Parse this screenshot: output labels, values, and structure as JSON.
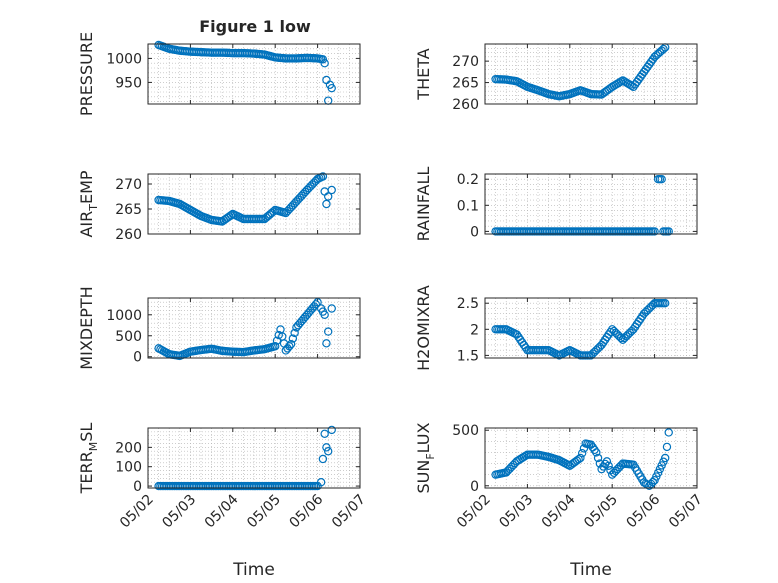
{
  "figure": {
    "title": "Figure 1 low",
    "background": "#ffffff"
  },
  "colors": {
    "marker": "#0072BD",
    "axis": "#262626",
    "grid": "#b0b0b0"
  },
  "chart_data": [
    {
      "type": "scatter",
      "title": "Figure 1 low",
      "ylabel": "PRESSURE",
      "ylim": [
        905,
        1030
      ],
      "yticks": [
        950,
        1000
      ],
      "xlim": [
        "05/02",
        "05/07"
      ],
      "xticks": [
        "05/02",
        "05/03",
        "05/04",
        "05/05",
        "05/06",
        "05/07"
      ],
      "xlabel": "",
      "grid": true,
      "x": [
        "05/02 06:00",
        "05/02 09:00",
        "05/02 12:00",
        "05/02 15:00",
        "05/02 18:00",
        "05/02 21:00",
        "05/03 00:00",
        "05/03 06:00",
        "05/03 12:00",
        "05/03 18:00",
        "05/04 00:00",
        "05/04 06:00",
        "05/04 12:00",
        "05/04 18:00",
        "05/05 00:00",
        "05/05 06:00",
        "05/05 12:00",
        "05/05 18:00",
        "05/06 00:00",
        "05/06 03:00",
        "05/06 04:00",
        "05/06 05:00",
        "05/06 06:00",
        "05/06 07:00",
        "05/06 08:00"
      ],
      "y": [
        1028,
        1024,
        1020,
        1018,
        1016,
        1015,
        1014,
        1013,
        1012,
        1012,
        1011,
        1011,
        1010,
        1008,
        1002,
        1000,
        1000,
        1001,
        1000,
        998,
        990,
        955,
        912,
        945,
        938
      ]
    },
    {
      "type": "scatter",
      "ylabel": "THETA",
      "ylim": [
        260,
        274
      ],
      "yticks": [
        260,
        265,
        270
      ],
      "xlim": [
        "05/02",
        "05/07"
      ],
      "xticks": [
        "05/02",
        "05/03",
        "05/04",
        "05/05",
        "05/06",
        "05/07"
      ],
      "xlabel": "",
      "grid": true,
      "x": [
        "05/02 06:00",
        "05/02 12:00",
        "05/02 18:00",
        "05/03 00:00",
        "05/03 06:00",
        "05/03 12:00",
        "05/03 18:00",
        "05/04 00:00",
        "05/04 06:00",
        "05/04 12:00",
        "05/04 18:00",
        "05/05 00:00",
        "05/05 06:00",
        "05/05 12:00",
        "05/05 18:00",
        "05/06 00:00",
        "05/06 06:00"
      ],
      "y": [
        265.8,
        265.7,
        265.3,
        264.0,
        263.2,
        262.3,
        261.8,
        262.3,
        263.2,
        262.3,
        262.2,
        264.0,
        265.5,
        264.0,
        267.5,
        271.0,
        273.2
      ]
    },
    {
      "type": "scatter",
      "ylabel": "AIR_TEMP",
      "ylabel_parts": [
        "AIR",
        "T",
        "EMP"
      ],
      "ylim": [
        260,
        272
      ],
      "yticks": [
        260,
        265,
        270
      ],
      "xlim": [
        "05/02",
        "05/07"
      ],
      "xticks": [
        "05/02",
        "05/03",
        "05/04",
        "05/05",
        "05/06",
        "05/07"
      ],
      "xlabel": "",
      "grid": true,
      "x": [
        "05/02 06:00",
        "05/02 12:00",
        "05/02 18:00",
        "05/03 00:00",
        "05/03 06:00",
        "05/03 12:00",
        "05/03 18:00",
        "05/04 00:00",
        "05/04 06:00",
        "05/04 12:00",
        "05/04 18:00",
        "05/05 00:00",
        "05/05 06:00",
        "05/05 12:00",
        "05/05 18:00",
        "05/06 00:00",
        "05/06 03:00",
        "05/06 04:00",
        "05/06 05:00",
        "05/06 06:00",
        "05/06 08:00"
      ],
      "y": [
        266.8,
        266.6,
        266.0,
        264.8,
        263.6,
        262.8,
        262.5,
        264.0,
        263.0,
        263.0,
        263.0,
        264.8,
        264.2,
        266.5,
        268.8,
        271.0,
        271.5,
        268.5,
        266.0,
        267.5,
        268.8
      ]
    },
    {
      "type": "scatter",
      "ylabel": "RAINFALL",
      "ylim": [
        -0.01,
        0.22
      ],
      "yticks": [
        0,
        0.1,
        0.2
      ],
      "xlim": [
        "05/02",
        "05/07"
      ],
      "xticks": [
        "05/02",
        "05/03",
        "05/04",
        "05/05",
        "05/06",
        "05/07"
      ],
      "xlabel": "",
      "grid": true,
      "x": [
        "05/02 06:00",
        "05/03 00:00",
        "05/04 00:00",
        "05/05 00:00",
        "05/06 00:00",
        "05/06 02:00",
        "05/06 03:00",
        "05/06 04:00",
        "05/06 05:00",
        "05/06 08:00"
      ],
      "y": [
        0,
        0,
        0,
        0,
        0,
        0.2,
        0.2,
        0.2,
        0,
        0
      ]
    },
    {
      "type": "scatter",
      "ylabel": "MIXDEPTH",
      "ylim": [
        -30,
        1400
      ],
      "yticks": [
        0,
        500,
        1000
      ],
      "xlim": [
        "05/02",
        "05/07"
      ],
      "xticks": [
        "05/02",
        "05/03",
        "05/04",
        "05/05",
        "05/06",
        "05/07"
      ],
      "xlabel": "",
      "grid": true,
      "x": [
        "05/02 06:00",
        "05/02 12:00",
        "05/02 18:00",
        "05/03 00:00",
        "05/03 06:00",
        "05/03 12:00",
        "05/03 18:00",
        "05/04 00:00",
        "05/04 06:00",
        "05/04 12:00",
        "05/04 18:00",
        "05/05 00:00",
        "05/05 03:00",
        "05/05 06:00",
        "05/05 09:00",
        "05/05 12:00",
        "05/05 18:00",
        "05/06 00:00",
        "05/06 02:00",
        "05/06 04:00",
        "05/06 05:00",
        "05/06 06:00",
        "05/06 08:00"
      ],
      "y": [
        200,
        60,
        20,
        120,
        160,
        190,
        140,
        120,
        110,
        150,
        180,
        250,
        650,
        150,
        300,
        700,
        1000,
        1300,
        1150,
        1000,
        320,
        600,
        1150
      ]
    },
    {
      "type": "scatter",
      "ylabel": "H2OMIXRA",
      "ylim": [
        1.45,
        2.6
      ],
      "yticks": [
        1.5,
        2,
        2.5
      ],
      "xlim": [
        "05/02",
        "05/07"
      ],
      "xticks": [
        "05/02",
        "05/03",
        "05/04",
        "05/05",
        "05/06",
        "05/07"
      ],
      "xlabel": "",
      "grid": true,
      "x": [
        "05/02 06:00",
        "05/02 12:00",
        "05/02 18:00",
        "05/03 00:00",
        "05/03 06:00",
        "05/03 12:00",
        "05/03 18:00",
        "05/04 00:00",
        "05/04 06:00",
        "05/04 12:00",
        "05/04 18:00",
        "05/05 00:00",
        "05/05 06:00",
        "05/05 12:00",
        "05/05 18:00",
        "05/06 00:00",
        "05/06 06:00"
      ],
      "y": [
        2.0,
        2.0,
        1.9,
        1.6,
        1.6,
        1.6,
        1.5,
        1.6,
        1.5,
        1.5,
        1.7,
        2.0,
        1.8,
        2.0,
        2.3,
        2.5,
        2.5
      ]
    },
    {
      "type": "scatter",
      "ylabel": "TERR_MSL",
      "ylabel_parts": [
        "TERR",
        "M",
        "SL"
      ],
      "ylim": [
        -10,
        300
      ],
      "yticks": [
        0,
        100,
        200
      ],
      "xlim": [
        "05/02",
        "05/07"
      ],
      "xticks": [
        "05/02",
        "05/03",
        "05/04",
        "05/05",
        "05/06",
        "05/07"
      ],
      "xlabel": "Time",
      "grid": true,
      "x": [
        "05/02 06:00",
        "05/03 00:00",
        "05/04 00:00",
        "05/05 00:00",
        "05/05 12:00",
        "05/06 00:00",
        "05/06 02:00",
        "05/06 03:00",
        "05/06 04:00",
        "05/06 05:00",
        "05/06 06:00",
        "05/06 08:00"
      ],
      "y": [
        0,
        0,
        0,
        0,
        0,
        0,
        20,
        140,
        270,
        200,
        180,
        290
      ]
    },
    {
      "type": "scatter",
      "ylabel": "SUN_FLUX",
      "ylabel_parts": [
        "SUN",
        "F",
        "LUX"
      ],
      "ylim": [
        -20,
        520
      ],
      "yticks": [
        0,
        500
      ],
      "xlim": [
        "05/02",
        "05/07"
      ],
      "xticks": [
        "05/02",
        "05/03",
        "05/04",
        "05/05",
        "05/06",
        "05/07"
      ],
      "xlabel": "Time",
      "grid": true,
      "x": [
        "05/02 06:00",
        "05/02 12:00",
        "05/02 18:00",
        "05/03 00:00",
        "05/03 06:00",
        "05/03 12:00",
        "05/03 18:00",
        "05/04 00:00",
        "05/04 06:00",
        "05/04 09:00",
        "05/04 12:00",
        "05/04 15:00",
        "05/04 18:00",
        "05/04 21:00",
        "05/05 00:00",
        "05/05 06:00",
        "05/05 12:00",
        "05/05 18:00",
        "05/05 21:00",
        "05/06 00:00",
        "05/06 03:00",
        "05/06 06:00",
        "05/06 07:00",
        "05/06 08:00"
      ],
      "y": [
        100,
        120,
        220,
        280,
        280,
        260,
        230,
        180,
        250,
        380,
        370,
        300,
        150,
        220,
        100,
        200,
        190,
        30,
        0,
        50,
        150,
        250,
        350,
        480
      ]
    }
  ]
}
